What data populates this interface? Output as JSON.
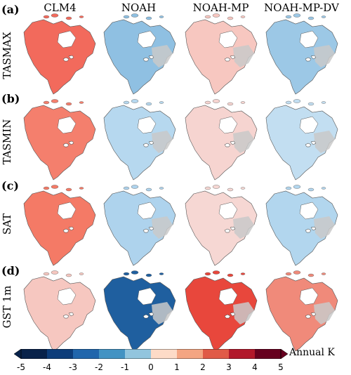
{
  "columns": [
    "CLM4",
    "NOAH",
    "NOAH-MP",
    "NOAH-MP-DV"
  ],
  "rows": [
    {
      "label": "(a)",
      "name": "TASMAX",
      "fills": [
        "#f26a5c",
        "#8fc0e2",
        "#f7c7c0",
        "#9cc8e6"
      ]
    },
    {
      "label": "(b)",
      "name": "TASMIN",
      "fills": [
        "#f47f6d",
        "#b6d8ef",
        "#f6d4d0",
        "#c2def1"
      ]
    },
    {
      "label": "(c)",
      "name": "SAT",
      "fills": [
        "#f47a66",
        "#aed3ed",
        "#f6d7d3",
        "#b2d6ee"
      ]
    },
    {
      "label": "(d)",
      "name": "GST 1m",
      "fills": [
        "#f6c7c0",
        "#1f5f9f",
        "#e8473c",
        "#f08a7a"
      ]
    }
  ],
  "colorbar": {
    "label": "Annual K",
    "ticks": [
      "-5",
      "-4",
      "-3",
      "-2",
      "-1",
      "0",
      "1",
      "2",
      "3",
      "4",
      "5"
    ],
    "colors": [
      "#08224a",
      "#0d3d7a",
      "#2166ac",
      "#4393c3",
      "#92c5de",
      "#d1e5f0",
      "#fddbc7",
      "#f4a582",
      "#e05a47",
      "#b2182b",
      "#67001f"
    ]
  }
}
